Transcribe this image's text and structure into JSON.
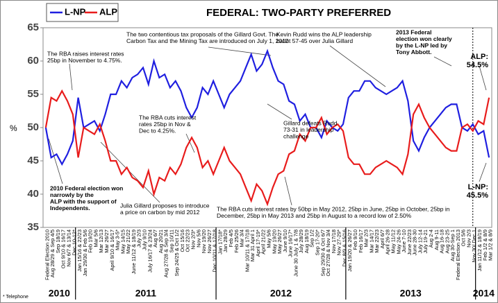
{
  "chart_data": {
    "type": "line",
    "title": "FEDERAL: TWO-PARTY PREFERRED",
    "y_label": "%",
    "footnote": "* Telephone",
    "ylim": [
      35,
      65
    ],
    "yticks": [
      35,
      40,
      45,
      50,
      55,
      60,
      65
    ],
    "grid": false,
    "legend": "top-left",
    "year_labels": [
      "2010",
      "2011",
      "2012",
      "2013",
      "2014"
    ],
    "categories": [
      "Federal Election 2010",
      "Aug 28/29 & Sep 4/5",
      "Sep 18/19",
      "Oct 9/10 & 16/17",
      "Nov 6/7 & 13/14",
      "Dec 10-12*",
      "Jan 15/16 & 22/23",
      "Jan 29/30 & Feb 5/6",
      "Feb 19/20",
      "Mar 5/6",
      "Mar 12/13",
      "Mar 26/27",
      "April 9/10 & 16/17",
      "May 3-5*",
      "May 14/15",
      "May 21/22",
      "June 11/12 & 18/19",
      "July 2/3",
      "July 9/10",
      "July 16/17 & 23/24",
      "Aug 6/7",
      "Aug 20/21",
      "Aug 27/28 & Sep 3/4",
      "Sep 10/11",
      "Sep 24/25 & Oct 1/2",
      "Oct 15/16",
      "Oct 22/23",
      "Nov 2/3*",
      "Nov 5/6",
      "Nov 19/20",
      "Nov 26/27",
      "Dec 10/11 & 17/18",
      "Jan 17/18*",
      "Jan 28/29",
      "Feb 4/5",
      "Feb 25/26",
      "Mar 3/4",
      "Mar 10/11 & 17/18",
      "Mar 31 April 1",
      "April 17-19*",
      "April 21/22",
      "May 5/6",
      "May 19/20",
      "May 26/27",
      "June 9/10",
      "June 16/17*",
      "June 30 July 1 & 7/8",
      "July 28/29",
      "Aug 18/19",
      "Sep 1/2",
      "Sep 17-20*",
      "Sep 29/30 & Oct 6/7",
      "Oct 27/28 & Nov 3/4",
      "Nov 17/18",
      "Nov 27-29*",
      "Dec 8/9 & 15/16",
      "Jan 19/20 & 26/27",
      "Feb 9/10",
      "Feb 16/17",
      "Mar 2/3",
      "Mar 14/17",
      "Mar 22/23",
      "April 6/7",
      "April 26-28",
      "May 11/12",
      "May 24-26",
      "June 7-10",
      "June 22/23",
      "June 28-30",
      "July 12-14",
      "July 19-21",
      "Aug 2-4",
      "Aug 9-11",
      "Aug 16-18",
      "Aug 23-25",
      "Aug 30-Sep 1",
      "Federal Election 2013",
      "Oct 5/6",
      "Nov 2/3",
      "Nov 30/ Dec 1",
      "Jan 11/12 & 18/19",
      "Feb 1/2 & 8/9",
      "Mar 1/2 & 8/9"
    ],
    "series": [
      {
        "name": "L-NP",
        "color": "#1f1fe0",
        "values": [
          50,
          45.5,
          46,
          44.5,
          46,
          48,
          54.5,
          50,
          50.5,
          51,
          49.5,
          52,
          55,
          55,
          57,
          56,
          57.5,
          58,
          59,
          56.5,
          60,
          57.5,
          58,
          56,
          57,
          55.5,
          53,
          51.5,
          53,
          56,
          55,
          57,
          55,
          53,
          55,
          56,
          57,
          59,
          61,
          58.5,
          59.5,
          61.5,
          59,
          57,
          56.5,
          54,
          53.5,
          51,
          52,
          50,
          50,
          48.5,
          51,
          50,
          49.5,
          50.5,
          54.5,
          55.5,
          55.5,
          57,
          57,
          56,
          55.5,
          55,
          55.5,
          56,
          57,
          54,
          48,
          46.5,
          48.5,
          50,
          51,
          52,
          53,
          53.5,
          53.5,
          50,
          49.5,
          50.5,
          49,
          49.5,
          45.5
        ]
      },
      {
        "name": "ALP",
        "color": "#e81c1c",
        "values": [
          50,
          54.5,
          54,
          55.5,
          54,
          52,
          45.5,
          50,
          49.5,
          49,
          50.5,
          48,
          45,
          45,
          43,
          44,
          42.5,
          42,
          41,
          43.5,
          40,
          42.5,
          42,
          44,
          43,
          44.5,
          47,
          48.5,
          47,
          44,
          45,
          43,
          45,
          47,
          45,
          44,
          43,
          41,
          39,
          41.5,
          40.5,
          38.5,
          41,
          43,
          43.5,
          46,
          46.5,
          49,
          48,
          50,
          50,
          51.5,
          49,
          50,
          50.5,
          49.5,
          45.5,
          44.5,
          44.5,
          43,
          43,
          44,
          44.5,
          45,
          44.5,
          44,
          43,
          46,
          52,
          53.5,
          51.5,
          50,
          49,
          48,
          47,
          46.5,
          46.5,
          50,
          50.5,
          49.5,
          51,
          50.5,
          54.5
        ]
      }
    ],
    "annotations": [
      [
        "The RBA raises interest rates",
        "25bp in November to 4.75%."
      ],
      [
        "The two contentious tax proposals of the Gillard Govt. The",
        "Carbon Tax and the Mining Tax are introduced on July 1, 2012"
      ],
      [
        "Kevin Rudd wins the ALP leadership",
        "ballot 57-45 over Julia Gillard"
      ],
      [
        "2013 Federal",
        "election won clearly",
        "by the L-NP led by",
        "Tony Abbott."
      ],
      [
        "The RBA cuts interest",
        "rates 25bp in Nov &",
        "Dec to 4.25%."
      ],
      [
        "Gillard defeats Rudd",
        "73-31 in leadership",
        "challenge"
      ],
      [
        "2010 Federal election won",
        "narrowly by the",
        "ALP with the support of",
        "Independents."
      ],
      [
        "Julia Gillard proposes to introduce",
        "a price on carbon by mid 2012"
      ],
      [
        "The RBA cuts interest rates by 50bp in May 2012, 25bp in June, 25bp in October, 25bp in",
        "December, 25bp in May 2013 and 25bp in August to a record low of 2.50%"
      ],
      [
        "ALP:",
        "54.5%"
      ],
      [
        "L-NP:",
        "45.5%"
      ]
    ]
  }
}
